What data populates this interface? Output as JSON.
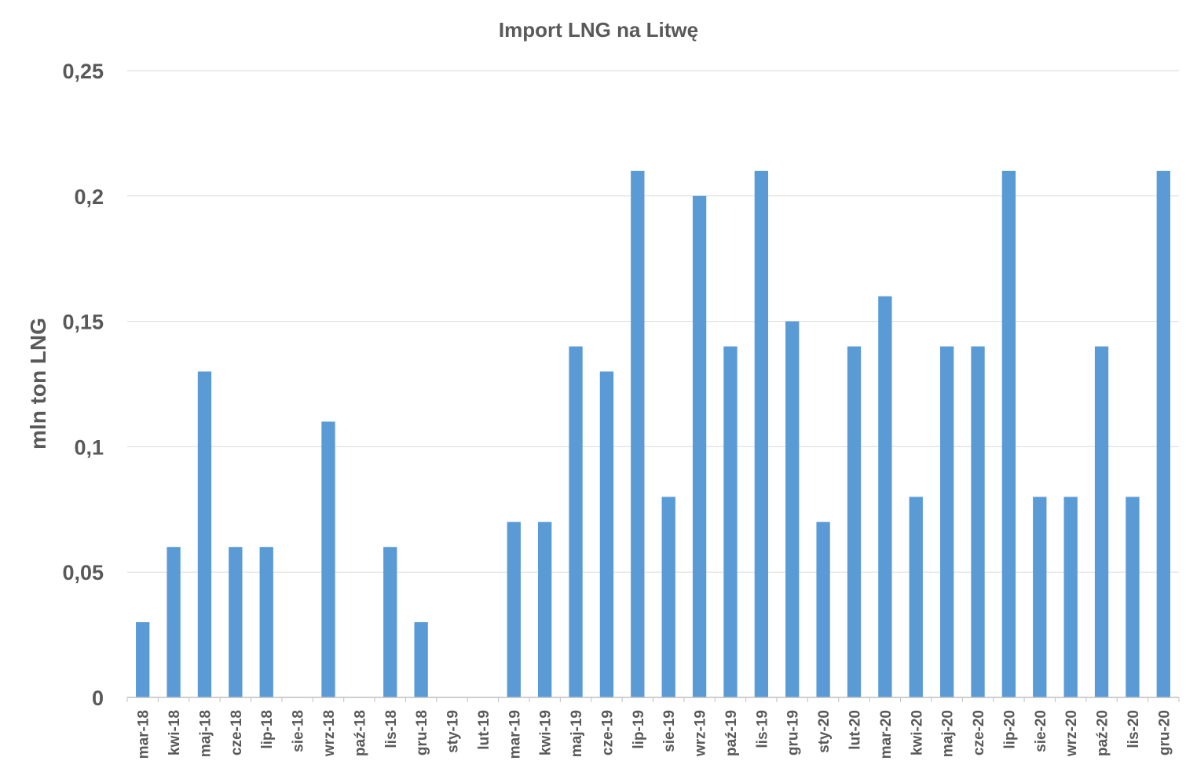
{
  "chart_data": {
    "type": "bar",
    "title": "Import LNG na Litwę",
    "xlabel": "",
    "ylabel": "mln ton LNG",
    "ylim": [
      0,
      0.25
    ],
    "yticks": [
      0,
      0.05,
      0.1,
      0.15,
      0.2,
      0.25
    ],
    "ytick_labels": [
      "0",
      "0,05",
      "0,1",
      "0,15",
      "0,2",
      "0,25"
    ],
    "grid": true,
    "legend": "none",
    "bar_color": "#5b9bd5",
    "categories": [
      "mar-18",
      "kwi-18",
      "maj-18",
      "cze-18",
      "lip-18",
      "sie-18",
      "wrz-18",
      "paź-18",
      "lis-18",
      "gru-18",
      "sty-19",
      "lut-19",
      "mar-19",
      "kwi-19",
      "maj-19",
      "cze-19",
      "lip-19",
      "sie-19",
      "wrz-19",
      "paź-19",
      "lis-19",
      "gru-19",
      "sty-20",
      "lut-20",
      "mar-20",
      "kwi-20",
      "maj-20",
      "cze-20",
      "lip-20",
      "sie-20",
      "wrz-20",
      "paź-20",
      "lis-20",
      "gru-20"
    ],
    "values": [
      0.03,
      0.06,
      0.13,
      0.06,
      0.06,
      0,
      0.11,
      0,
      0.06,
      0.03,
      0,
      0,
      0.07,
      0.07,
      0.14,
      0.13,
      0.21,
      0.08,
      0.2,
      0.14,
      0.21,
      0.15,
      0.07,
      0.14,
      0.16,
      0.08,
      0.14,
      0.14,
      0.21,
      0.08,
      0.08,
      0.14,
      0.08,
      0.21
    ]
  }
}
